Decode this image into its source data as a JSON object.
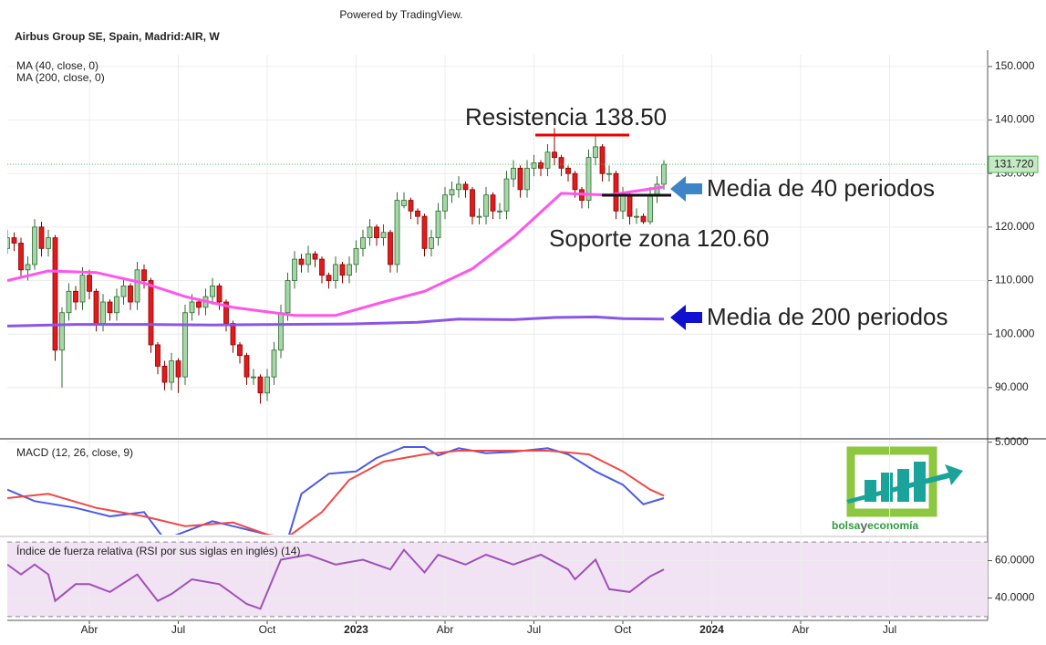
{
  "header": {
    "powered": "Powered by TradingView.",
    "symbol": "Airbus Group SE, Spain, Madrid:AIR, W"
  },
  "logo": {
    "parts": [
      "bolsa",
      "y",
      "economía"
    ]
  },
  "chart_data": [
    {
      "type": "candlestick",
      "xlim": [
        0,
        143
      ],
      "ylim": [
        80.6,
        152.2
      ],
      "yticks": [
        {
          "value": 150,
          "label": "150.000"
        },
        {
          "value": 140,
          "label": "140.000"
        },
        {
          "value": 130,
          "label": "130.000"
        },
        {
          "value": 120,
          "label": "120.000"
        },
        {
          "value": 110,
          "label": "110.000"
        },
        {
          "value": 100,
          "label": "100.000"
        },
        {
          "value": 90,
          "label": "90.000"
        }
      ],
      "grid": true,
      "up_color": "#a5d6a7",
      "up_edge": "#2e6b30",
      "down_color": "#e31a1c",
      "down_edge": "#8b0000",
      "last_price": {
        "value": 131.72,
        "label": "131.720"
      },
      "annotations": [
        "Resistencia 138.50",
        "Media de 40 periodos",
        "Soporte zona 120.60",
        "Media de 200 periodos"
      ],
      "candles": [
        [
          116,
          119.5,
          115,
          118
        ],
        [
          118,
          119,
          115.5,
          117
        ],
        [
          117,
          118,
          110.5,
          112
        ],
        [
          112,
          114.5,
          110,
          113
        ],
        [
          113,
          121.5,
          112,
          120
        ],
        [
          120,
          121,
          114.5,
          116
        ],
        [
          116,
          119.5,
          114.5,
          118
        ],
        [
          118,
          118.5,
          95,
          97
        ],
        [
          97,
          105,
          90,
          104
        ],
        [
          104,
          109.5,
          102.5,
          108
        ],
        [
          108,
          109,
          104.5,
          106
        ],
        [
          106,
          112.5,
          104.5,
          111
        ],
        [
          111,
          112,
          106.5,
          108
        ],
        [
          108,
          108.5,
          100.5,
          102
        ],
        [
          102,
          107.5,
          100.5,
          106
        ],
        [
          106,
          106.5,
          102.5,
          104
        ],
        [
          104,
          108.5,
          102.5,
          107
        ],
        [
          107,
          110.5,
          105.5,
          109
        ],
        [
          109,
          109.5,
          104.5,
          106
        ],
        [
          106,
          113.5,
          104.5,
          112
        ],
        [
          112,
          113,
          108.5,
          110
        ],
        [
          110,
          110.5,
          96.5,
          98
        ],
        [
          98,
          98.5,
          92.5,
          94
        ],
        [
          94,
          95,
          89.5,
          91
        ],
        [
          91,
          96.5,
          89.5,
          95
        ],
        [
          95,
          95.5,
          89,
          92
        ],
        [
          92,
          105.5,
          90.5,
          104
        ],
        [
          104,
          107.5,
          102.5,
          106
        ],
        [
          106,
          106.5,
          103.5,
          105
        ],
        [
          105,
          108.5,
          103.5,
          107
        ],
        [
          107,
          110.5,
          105.5,
          109
        ],
        [
          109,
          109.5,
          104.5,
          106
        ],
        [
          106,
          106.5,
          100.5,
          102
        ],
        [
          102,
          102.5,
          96.5,
          98
        ],
        [
          98,
          98.5,
          94.5,
          96
        ],
        [
          96,
          96.5,
          90.5,
          92
        ],
        [
          92,
          93.5,
          90.5,
          92
        ],
        [
          92,
          92.5,
          87,
          89
        ],
        [
          89,
          93.5,
          87.5,
          92
        ],
        [
          92,
          98.5,
          90.5,
          97
        ],
        [
          97,
          105.5,
          95.5,
          104
        ],
        [
          104,
          111.5,
          102.5,
          110
        ],
        [
          110,
          115.5,
          108.5,
          114
        ],
        [
          114,
          115,
          111.5,
          113
        ],
        [
          113,
          116.5,
          111.5,
          115
        ],
        [
          115,
          115.5,
          112.5,
          114
        ],
        [
          114,
          114.5,
          109.5,
          111
        ],
        [
          111,
          111.5,
          108.5,
          110
        ],
        [
          110,
          114.5,
          108.5,
          113
        ],
        [
          113,
          113.5,
          109.5,
          111
        ],
        [
          111,
          114.5,
          109.5,
          113
        ],
        [
          113,
          117.5,
          111.5,
          116
        ],
        [
          116,
          119.5,
          114.5,
          118
        ],
        [
          118,
          121.5,
          116.5,
          120
        ],
        [
          120,
          120.5,
          116.5,
          118
        ],
        [
          118,
          120.5,
          116.5,
          119
        ],
        [
          119,
          119.5,
          111.5,
          113
        ],
        [
          113,
          126.5,
          111.5,
          125
        ],
        [
          124,
          126.5,
          123.5,
          125
        ],
        [
          125,
          125.5,
          121.5,
          123
        ],
        [
          123,
          123.5,
          120.5,
          122
        ],
        [
          122,
          122.5,
          114.5,
          116
        ],
        [
          116,
          119.5,
          114.5,
          118
        ],
        [
          118,
          124.5,
          116.5,
          123
        ],
        [
          123,
          127.5,
          121.5,
          126
        ],
        [
          126,
          128.5,
          124.5,
          127
        ],
        [
          127,
          129.5,
          125.5,
          128
        ],
        [
          128,
          128.5,
          125.5,
          127
        ],
        [
          127,
          127.5,
          120.5,
          122
        ],
        [
          122,
          123.5,
          120.5,
          122
        ],
        [
          122,
          127.5,
          120.5,
          126
        ],
        [
          126,
          126.5,
          121.5,
          123
        ],
        [
          123,
          124.5,
          121.5,
          123
        ],
        [
          123,
          130.5,
          121.5,
          129
        ],
        [
          129,
          132.5,
          127.5,
          131
        ],
        [
          131,
          131.5,
          125.5,
          127
        ],
        [
          127,
          132.5,
          125.5,
          131
        ],
        [
          131,
          133.5,
          129.5,
          132
        ],
        [
          132,
          132.5,
          129.5,
          131
        ],
        [
          131,
          135.5,
          129.5,
          134
        ],
        [
          134,
          138.5,
          131.5,
          133
        ],
        [
          133,
          133.5,
          129.5,
          131
        ],
        [
          131,
          131.5,
          128.5,
          130
        ],
        [
          130,
          130.5,
          125.5,
          127
        ],
        [
          127,
          127.5,
          123.5,
          125
        ],
        [
          125,
          134.5,
          123.5,
          133
        ],
        [
          133,
          137,
          131.5,
          135
        ],
        [
          135,
          135.5,
          128.5,
          130
        ],
        [
          130,
          131.5,
          128.5,
          130
        ],
        [
          130,
          130.5,
          121.5,
          123
        ],
        [
          123,
          127.5,
          121.5,
          126
        ],
        [
          126,
          126.5,
          120.5,
          122
        ],
        [
          122,
          123.5,
          120.6,
          122
        ],
        [
          122,
          122.5,
          120.6,
          121
        ],
        [
          121,
          127.5,
          120.5,
          126
        ],
        [
          126,
          129.5,
          124.5,
          128
        ],
        [
          128,
          132.5,
          127,
          131.72
        ]
      ],
      "series": [
        {
          "name": "MA (40, close, 0)",
          "color": "#ff55ee",
          "x": [
            0,
            6,
            13,
            20,
            26,
            33,
            42,
            48,
            55,
            61,
            68,
            74,
            81,
            88,
            96
          ],
          "values": [
            110,
            111.8,
            111.5,
            109.5,
            107,
            105,
            103.5,
            103.5,
            106,
            108,
            112.2,
            118.1,
            126.3,
            126,
            127.5
          ]
        },
        {
          "name": "MA (200, close, 0)",
          "color": "#8b55e8",
          "x": [
            0,
            10,
            20,
            30,
            40,
            50,
            60,
            66,
            74,
            80,
            86,
            90,
            96
          ],
          "values": [
            101.5,
            101.8,
            101.8,
            101.7,
            101.8,
            101.9,
            102.2,
            102.8,
            102.7,
            103.1,
            103.2,
            102.9,
            102.8
          ]
        }
      ]
    },
    {
      "type": "line",
      "title": "MACD (12, 26, close, 9)",
      "xlim": [
        0,
        143
      ],
      "ylim": [
        -2.6,
        5.2
      ],
      "yticks": [
        {
          "value": 5,
          "label": "5.0000"
        }
      ],
      "series": [
        {
          "color": "#4a5ae8",
          "x": [
            0,
            4,
            10,
            15,
            20,
            23,
            30,
            41,
            43,
            47,
            51,
            54,
            58,
            61,
            63,
            66,
            70,
            74,
            79,
            82,
            86,
            90,
            93,
            96
          ],
          "values": [
            1.1,
            0.15,
            -0.4,
            -1.1,
            -0.75,
            -3,
            -1.5,
            -3,
            0.75,
            2.4,
            2.6,
            3.7,
            4.6,
            4.6,
            3.9,
            4.5,
            4.1,
            4.2,
            4.5,
            4,
            2.6,
            1.5,
            -0.1,
            0.4
          ]
        },
        {
          "color": "#f04848",
          "x": [
            0,
            6,
            13,
            20,
            26,
            33,
            38,
            41,
            46,
            50,
            55,
            61,
            66,
            74,
            79,
            85,
            90,
            94,
            96
          ],
          "values": [
            0.4,
            0.75,
            -0.4,
            -1.1,
            -1.9,
            -1.6,
            -2.6,
            -2.8,
            -0.75,
            1.9,
            3.4,
            4,
            4.3,
            4.3,
            4.3,
            4,
            2.6,
            1.1,
            0.6
          ]
        }
      ]
    },
    {
      "type": "line",
      "title": "Índice de fuerza relativa (RSI por sus siglas en inglés) (14)",
      "xlim": [
        0,
        143
      ],
      "ylim": [
        28,
        72
      ],
      "yticks": [
        {
          "value": 60,
          "label": "60.0000"
        },
        {
          "value": 40,
          "label": "40.0000"
        }
      ],
      "band": [
        30,
        70
      ],
      "xticks": [
        {
          "value": 12,
          "label": "Abr"
        },
        {
          "value": 25,
          "label": "Jul"
        },
        {
          "value": 38,
          "label": "Oct"
        },
        {
          "value": 51,
          "label": "2023"
        },
        {
          "value": 64,
          "label": "Abr"
        },
        {
          "value": 77,
          "label": "Jul"
        },
        {
          "value": 90,
          "label": "Oct"
        },
        {
          "value": 103,
          "label": "2024"
        },
        {
          "value": 116,
          "label": "Abr"
        },
        {
          "value": 129,
          "label": "Jul"
        }
      ],
      "series": [
        {
          "color": "#a050b8",
          "x": [
            0,
            2,
            4,
            6,
            7,
            10,
            12,
            15,
            19,
            22,
            24,
            27,
            31,
            35,
            37,
            40,
            44,
            48,
            52,
            56,
            58,
            61,
            63,
            67,
            70,
            74,
            78,
            82,
            83,
            86,
            88,
            91,
            94,
            96
          ],
          "values": [
            57.9,
            52.6,
            57.9,
            52.6,
            38.4,
            47.4,
            47.4,
            43.2,
            52.6,
            38.4,
            42.1,
            50,
            47.4,
            36.8,
            34.2,
            60.5,
            63.2,
            57.9,
            60.5,
            55.3,
            65.8,
            53.7,
            63.2,
            57.9,
            63.2,
            57.9,
            63.2,
            55.3,
            50,
            60.5,
            44.7,
            43.2,
            51.6,
            55.3
          ]
        }
      ]
    }
  ]
}
